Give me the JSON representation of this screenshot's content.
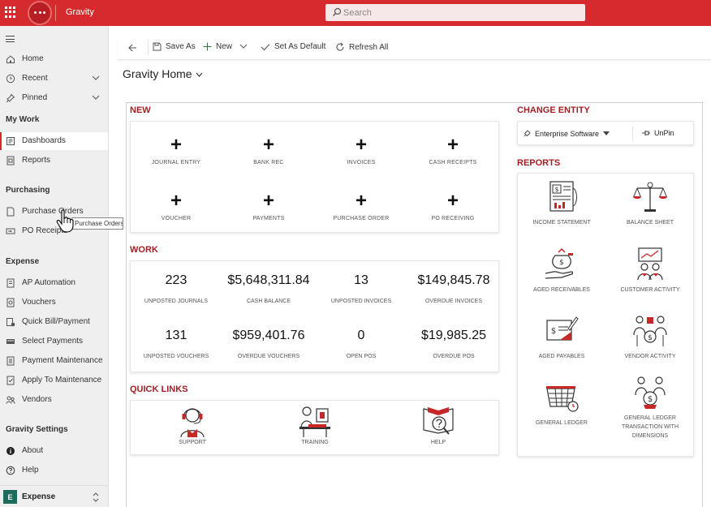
{
  "app": {
    "name": "Gravity"
  },
  "search": {
    "placeholder": "Search"
  },
  "sidebar": {
    "top_items": [
      {
        "label": "Home",
        "icon": "home-icon"
      },
      {
        "label": "Recent",
        "icon": "clock-icon"
      },
      {
        "label": "Pinned",
        "icon": "pin-icon"
      }
    ],
    "groups": {
      "my_work": {
        "label": "My Work",
        "items": [
          {
            "label": "Dashboards",
            "icon": "dashboard-icon"
          },
          {
            "label": "Reports",
            "icon": "report-icon"
          }
        ]
      },
      "purchasing": {
        "label": "Purchasing",
        "items": [
          {
            "label": "Purchase Orders",
            "icon": "purchase-order-icon"
          },
          {
            "label": "PO Receipts",
            "icon": "receipt-icon"
          }
        ]
      },
      "expense": {
        "label": "Expense",
        "items": [
          {
            "label": "AP Automation",
            "icon": "automation-icon"
          },
          {
            "label": "Vouchers",
            "icon": "voucher-icon"
          },
          {
            "label": "Quick Bill/Payment",
            "icon": "quick-bill-icon"
          },
          {
            "label": "Select Payments",
            "icon": "select-payments-icon"
          },
          {
            "label": "Payment Maintenance",
            "icon": "payment-maintenance-icon"
          },
          {
            "label": "Apply To Maintenance",
            "icon": "apply-maintenance-icon"
          },
          {
            "label": "Vendors",
            "icon": "vendors-icon"
          }
        ]
      },
      "gravity_settings": {
        "label": "Gravity Settings",
        "items": [
          {
            "label": "About",
            "icon": "info-icon"
          },
          {
            "label": "Help",
            "icon": "help-icon"
          }
        ]
      }
    },
    "area": {
      "badge": "E",
      "label": "Expense"
    },
    "tooltip": "Purchase Orders"
  },
  "commands": {
    "save_as": "Save As",
    "new": "New",
    "set_default": "Set As Default",
    "refresh": "Refresh All"
  },
  "page": {
    "title": "Gravity Home"
  },
  "new_section": {
    "title": "NEW",
    "tiles": [
      "JOURNAL ENTRY",
      "BANK REC",
      "INVOICES",
      "CASH RECEIPTS",
      "VOUCHER",
      "PAYMENTS",
      "PURCHASE ORDER",
      "PO RECEIVING"
    ]
  },
  "work_section": {
    "title": "WORK",
    "kpis": [
      {
        "value": "223",
        "label": "UNPOSTED JOURNALS"
      },
      {
        "value": "$5,648,311.84",
        "label": "CASH BALANCE"
      },
      {
        "value": "13",
        "label": "UNPOSTED INVOICES"
      },
      {
        "value": "$149,845.78",
        "label": "OVERDUE INVOICES"
      },
      {
        "value": "131",
        "label": "UNPOSTED VOUCHERS"
      },
      {
        "value": "$959,401.76",
        "label": "OVERDUE VOUCHERS"
      },
      {
        "value": "0",
        "label": "OPEN POS"
      },
      {
        "value": "$19,985.25",
        "label": "OVERDUE POS"
      }
    ]
  },
  "quick_links": {
    "title": "QUICK LINKS",
    "items": [
      "SUPPORT",
      "TRAINING",
      "HELP"
    ]
  },
  "change_entity": {
    "title": "CHANGE ENTITY",
    "entity": "Enterprise Software",
    "unpin": "UnPin"
  },
  "reports": {
    "title": "REPORTS",
    "items": [
      "INCOME STATEMENT",
      "BALANCE SHEET",
      "AGED RECEIVABLES",
      "CUSTOMER ACTIVITY",
      "AGED PAYABLES",
      "VENDOR ACTIVITY",
      "GENERAL LEDGER",
      "GENERAL LEDGER TRANSACTION WITH DIMENSIONS"
    ]
  },
  "colors": {
    "brand": "#d52b2e",
    "section_title": "#a31f23",
    "badge": "#1d6b5a"
  }
}
